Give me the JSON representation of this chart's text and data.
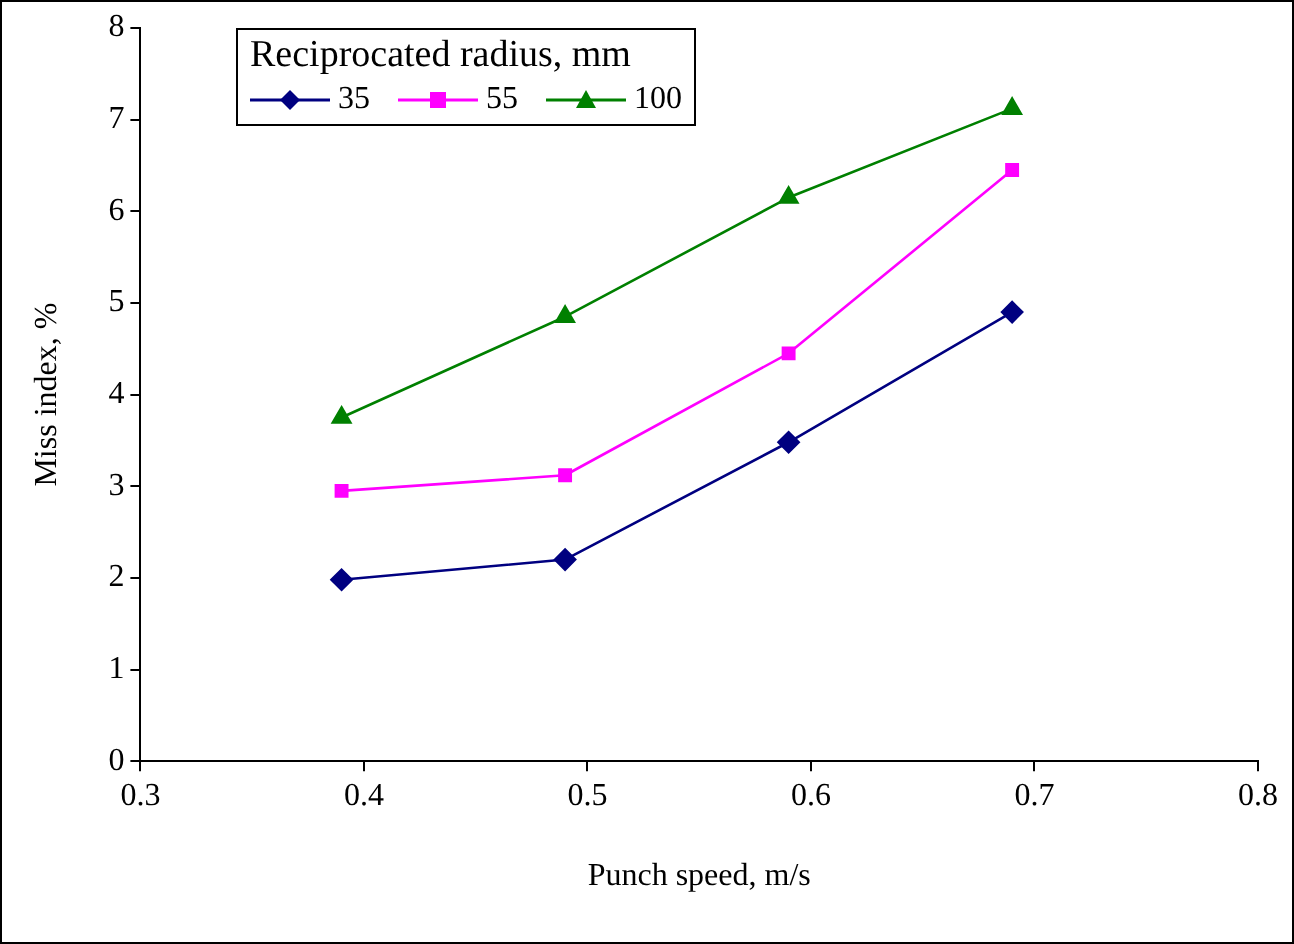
{
  "chart_data": {
    "type": "line",
    "xlabel": "Punch speed, m/s",
    "ylabel": "Miss index, %",
    "legend_title": "Reciprocated radius, mm",
    "legend": "top left",
    "grid": false,
    "x": [
      0.39,
      0.49,
      0.59,
      0.69
    ],
    "xlim": [
      0.3,
      0.8
    ],
    "xticks": [
      0.3,
      0.4,
      0.5,
      0.6,
      0.7,
      0.8
    ],
    "ylim": [
      0,
      8
    ],
    "yticks": [
      0,
      1,
      2,
      3,
      4,
      5,
      6,
      7,
      8
    ],
    "series": [
      {
        "name": "35",
        "color": "#000080",
        "marker": "diamond",
        "values": [
          1.98,
          2.2,
          3.48,
          4.9
        ]
      },
      {
        "name": "55",
        "color": "#ff00ff",
        "marker": "square",
        "values": [
          2.95,
          3.12,
          4.45,
          6.45
        ]
      },
      {
        "name": "100",
        "color": "#008000",
        "marker": "triangle",
        "values": [
          3.75,
          4.85,
          6.15,
          7.12
        ]
      }
    ]
  }
}
